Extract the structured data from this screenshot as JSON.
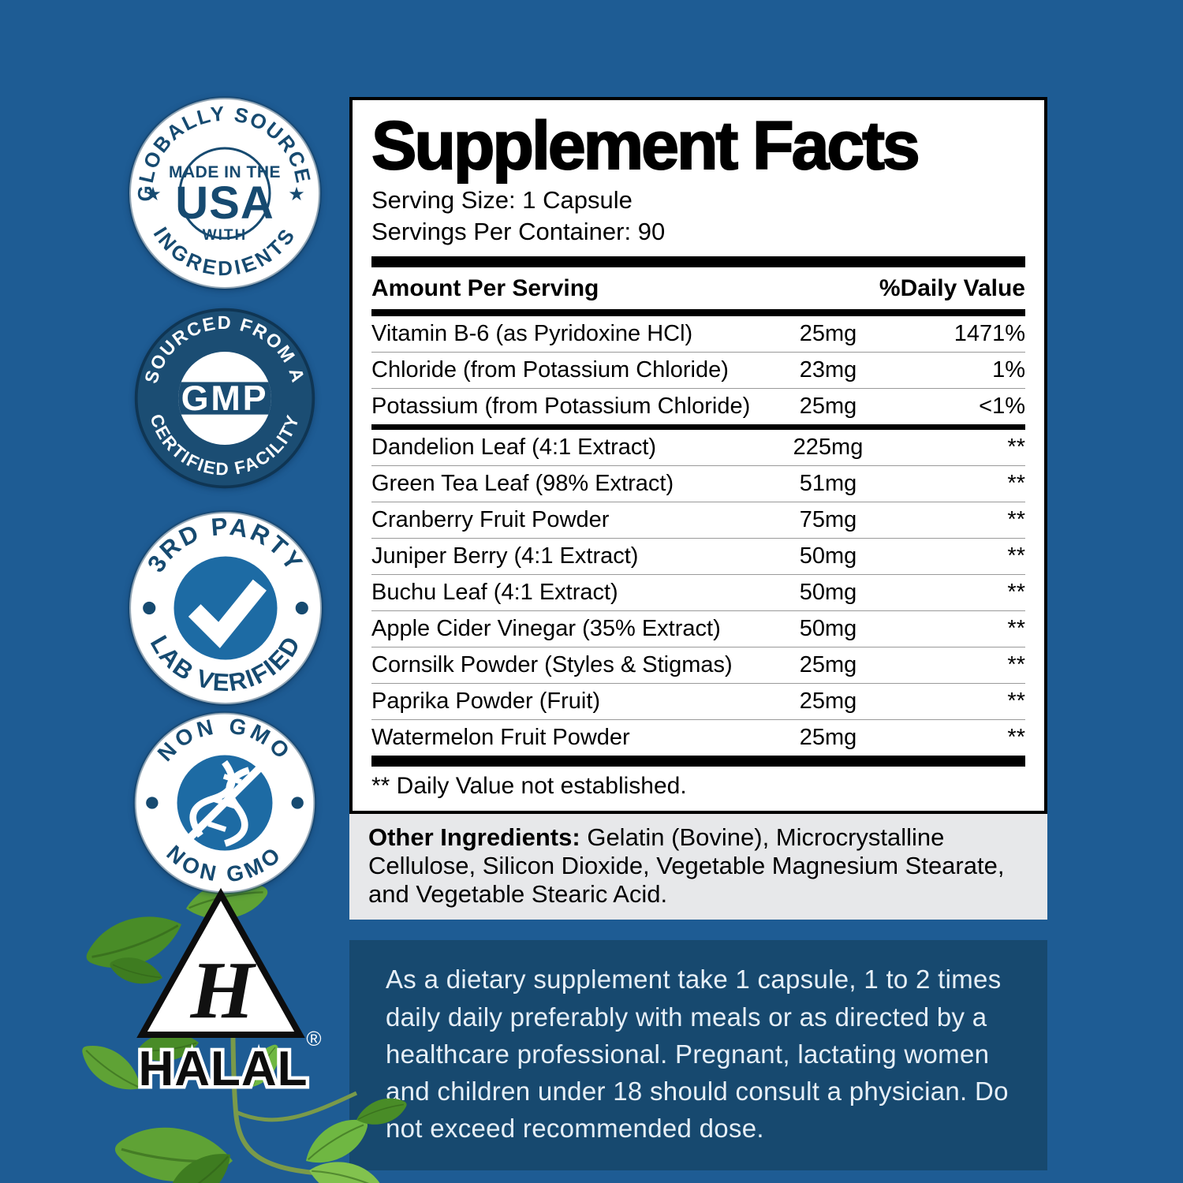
{
  "colors": {
    "page_background": "#1e5c94",
    "directions_navy": "#17496f",
    "badge_navy": "#164a70",
    "badge_circle_navy": "#1b4d73",
    "badge_accent_blue": "#1d6ba4",
    "gray_box": "#e7e8ea",
    "leaf_green": "#5fa235"
  },
  "icons": {
    "star": "★",
    "registered": "®",
    "check": "check-icon",
    "dna": "dna-strikethrough-icon",
    "halal_letter": "H"
  },
  "badges": {
    "usa": {
      "arc_top": "GLOBALLY SOURCED",
      "arc_bottom": "INGREDIENTS",
      "line1": "MADE IN THE",
      "line2": "USA",
      "line3": "WITH"
    },
    "gmp": {
      "arc_top": "SOURCED FROM A",
      "arc_bottom": "CERTIFIED FACILITY",
      "center": "GMP"
    },
    "lab": {
      "arc_top": "3RD PARTY",
      "arc_bottom": "LAB VERIFIED"
    },
    "nongmo": {
      "arc_top": "NON GMO",
      "arc_bottom": "NON GMO"
    },
    "halal": {
      "label": "HALAL"
    }
  },
  "panel": {
    "title": "Supplement Facts",
    "serving_size": "Serving Size: 1 Capsule",
    "servings_per_container": "Servings Per Container: 90",
    "col_left": "Amount Per Serving",
    "col_right": "%Daily Value",
    "mineral_rows": [
      {
        "name": "Vitamin B-6 (as Pyridoxine HCl)",
        "amount": "25mg",
        "dv": "1471%"
      },
      {
        "name": "Chloride (from Potassium Chloride)",
        "amount": "23mg",
        "dv": "1%"
      },
      {
        "name": "Potassium (from Potassium Chloride)",
        "amount": "25mg",
        "dv": "<1%"
      }
    ],
    "herbal_rows": [
      {
        "name": "Dandelion Leaf (4:1 Extract)",
        "amount": "225mg",
        "dv": "**"
      },
      {
        "name": "Green Tea Leaf (98% Extract)",
        "amount": "51mg",
        "dv": "**"
      },
      {
        "name": "Cranberry Fruit Powder",
        "amount": "75mg",
        "dv": "**"
      },
      {
        "name": "Juniper Berry (4:1 Extract)",
        "amount": "50mg",
        "dv": "**"
      },
      {
        "name": "Buchu Leaf (4:1 Extract)",
        "amount": "50mg",
        "dv": "**"
      },
      {
        "name": "Apple Cider Vinegar (35% Extract)",
        "amount": "50mg",
        "dv": "**"
      },
      {
        "name": "Cornsilk Powder (Styles & Stigmas)",
        "amount": "25mg",
        "dv": "**"
      },
      {
        "name": "Paprika Powder (Fruit)",
        "amount": "25mg",
        "dv": "**"
      },
      {
        "name": "Watermelon Fruit Powder",
        "amount": "25mg",
        "dv": "**"
      }
    ],
    "footnote": "** Daily Value not established."
  },
  "other_ingredients": {
    "label": "Other Ingredients:",
    "text": "Gelatin (Bovine), Microcrystalline Cellulose, Silicon Dioxide, Vegetable Magnesium Stearate, and Vegetable Stearic Acid."
  },
  "directions": "As a dietary supplement take 1 capsule, 1 to 2 times daily daily preferably with meals or as directed by a healthcare professional. Pregnant, lactating women and children under 18 should consult a physician. Do not exceed recommended dose."
}
